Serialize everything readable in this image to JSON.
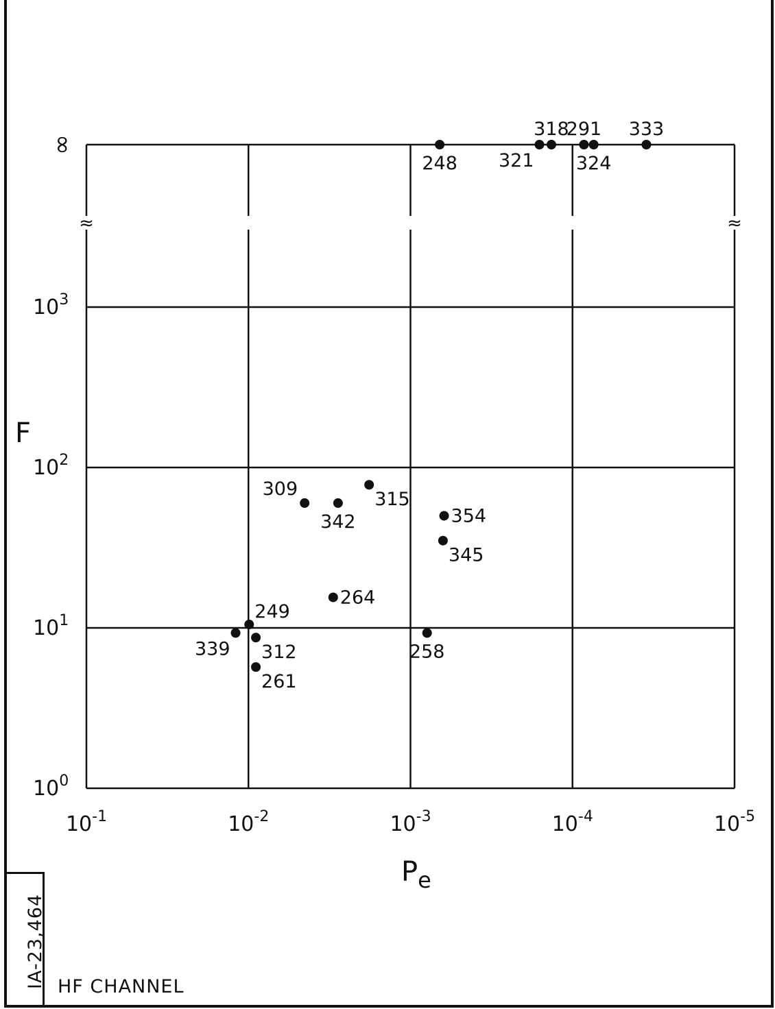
{
  "chart_data": {
    "type": "scatter",
    "xlabel": "P",
    "xlabel_subscript": "e",
    "ylabel": "F",
    "x_scale": "log-reversed",
    "y_scale": "log",
    "xlim": [
      0.1,
      1e-05
    ],
    "ylim": [
      1,
      10000
    ],
    "y_axis_break": "≈",
    "grid": true,
    "x_ticks": [
      {
        "value": 0.1,
        "base": "10",
        "exp": "-1"
      },
      {
        "value": 0.01,
        "base": "10",
        "exp": "-2"
      },
      {
        "value": 0.001,
        "base": "10",
        "exp": "-3"
      },
      {
        "value": 0.0001,
        "base": "10",
        "exp": "-4"
      },
      {
        "value": 1e-05,
        "base": "10",
        "exp": "-5"
      }
    ],
    "y_ticks": [
      {
        "value": 1,
        "base": "10",
        "exp": "0"
      },
      {
        "value": 10,
        "base": "10",
        "exp": "1"
      },
      {
        "value": 100,
        "base": "10",
        "exp": "2"
      },
      {
        "value": 1000,
        "base": "10",
        "exp": "3"
      },
      {
        "value": "infinity",
        "text": "∞"
      }
    ],
    "points": [
      {
        "label": "248",
        "x": 0.00066,
        "y": "infinity",
        "label_pos": "below"
      },
      {
        "label": "321",
        "x": 0.00016,
        "y": "infinity",
        "label_pos": "below-left"
      },
      {
        "label": "318",
        "x": 0.000135,
        "y": "infinity",
        "label_pos": "above"
      },
      {
        "label": "291",
        "x": 8.5e-05,
        "y": "infinity",
        "label_pos": "above"
      },
      {
        "label": "324",
        "x": 7.4e-05,
        "y": "infinity",
        "label_pos": "below"
      },
      {
        "label": "333",
        "x": 3.5e-05,
        "y": "infinity",
        "label_pos": "above"
      },
      {
        "label": "309",
        "x": 0.0045,
        "y": 60,
        "label_pos": "above-left"
      },
      {
        "label": "342",
        "x": 0.0028,
        "y": 60,
        "label_pos": "below"
      },
      {
        "label": "315",
        "x": 0.0018,
        "y": 78,
        "label_pos": "below-right"
      },
      {
        "label": "354",
        "x": 0.00062,
        "y": 50,
        "label_pos": "right"
      },
      {
        "label": "345",
        "x": 0.00063,
        "y": 35,
        "label_pos": "below-right"
      },
      {
        "label": "264",
        "x": 0.003,
        "y": 15.5,
        "label_pos": "right"
      },
      {
        "label": "249",
        "x": 0.0099,
        "y": 10.5,
        "label_pos": "above-right"
      },
      {
        "label": "339",
        "x": 0.012,
        "y": 9.3,
        "label_pos": "below-left"
      },
      {
        "label": "312",
        "x": 0.009,
        "y": 8.7,
        "label_pos": "below-right"
      },
      {
        "label": "261",
        "x": 0.009,
        "y": 5.7,
        "label_pos": "below-right"
      },
      {
        "label": "258",
        "x": 0.00079,
        "y": 9.3,
        "label_pos": "below"
      }
    ]
  },
  "figure_id": "IA-23,464",
  "caption": "HF CHANNEL"
}
